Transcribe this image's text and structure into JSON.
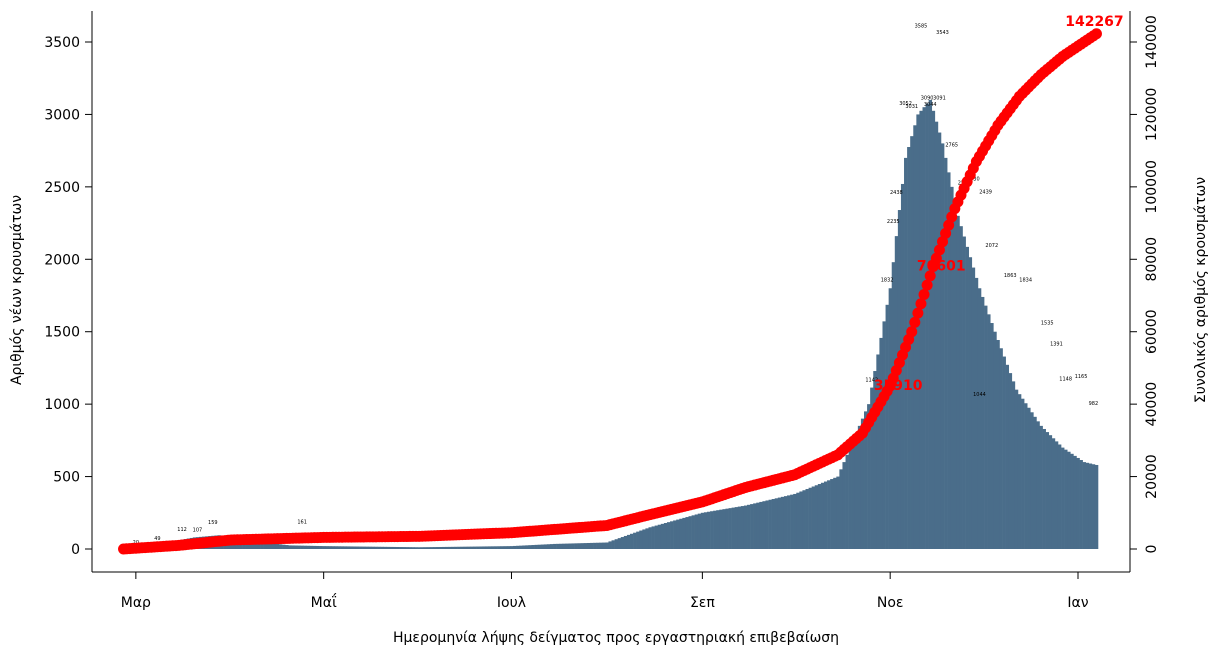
{
  "chart_data": {
    "type": "bar",
    "xlabel": "Ημερομηνία λήψης δείγματος προς εργαστηριακή επιβεβαίωση",
    "ylabel": "Αριθμός νέων κρουσμάτων",
    "y2label": "Συνολικός αριθμός κρουσμάτων",
    "x_tick_labels": [
      "Μαρ",
      "Μαΐ",
      "Ιουλ",
      "Σεπ",
      "Νοε",
      "Ιαν"
    ],
    "x_tick_dates": [
      "2020-03-01",
      "2020-05-01",
      "2020-07-01",
      "2020-09-01",
      "2020-11-01",
      "2021-01-01"
    ],
    "date_range": [
      "2020-02-26",
      "2021-01-07"
    ],
    "ylim": [
      0,
      3500
    ],
    "y_ticks": [
      0,
      500,
      1000,
      1500,
      2000,
      2500,
      3000,
      3500
    ],
    "y2lim": [
      0,
      140000
    ],
    "y2_ticks": [
      0,
      20000,
      40000,
      60000,
      80000,
      100000,
      120000,
      140000
    ],
    "grid": false,
    "colors": {
      "bars": "#4a6d8a",
      "cumulative": "#ff0000"
    },
    "series": [
      {
        "kind": "bar",
        "axis": "left",
        "knots": [
          [
            "2020-02-26",
            2
          ],
          [
            "2020-03-05",
            20
          ],
          [
            "2020-03-12",
            50
          ],
          [
            "2020-03-20",
            80
          ],
          [
            "2020-03-28",
            95
          ],
          [
            "2020-04-05",
            60
          ],
          [
            "2020-04-20",
            25
          ],
          [
            "2020-05-01",
            20
          ],
          [
            "2020-06-01",
            12
          ],
          [
            "2020-07-01",
            20
          ],
          [
            "2020-07-15",
            35
          ],
          [
            "2020-08-01",
            45
          ],
          [
            "2020-08-15",
            150
          ],
          [
            "2020-09-01",
            250
          ],
          [
            "2020-09-15",
            300
          ],
          [
            "2020-10-01",
            380
          ],
          [
            "2020-10-15",
            500
          ],
          [
            "2020-10-25",
            1000
          ],
          [
            "2020-11-01",
            1800
          ],
          [
            "2020-11-06",
            2700
          ],
          [
            "2020-11-10",
            3000
          ],
          [
            "2020-11-14",
            3100
          ],
          [
            "2020-11-18",
            2800
          ],
          [
            "2020-11-23",
            2300
          ],
          [
            "2020-11-30",
            1800
          ],
          [
            "2020-12-05",
            1500
          ],
          [
            "2020-12-12",
            1100
          ],
          [
            "2020-12-20",
            850
          ],
          [
            "2020-12-27",
            700
          ],
          [
            "2021-01-03",
            600
          ],
          [
            "2021-01-07",
            580
          ]
        ],
        "labeled_points": [
          [
            "2020-03-01",
            20
          ],
          [
            "2020-03-08",
            49
          ],
          [
            "2020-03-16",
            112
          ],
          [
            "2020-03-21",
            107
          ],
          [
            "2020-03-26",
            159
          ],
          [
            "2020-04-24",
            161
          ],
          [
            "2020-10-26",
            1142
          ],
          [
            "2020-10-31",
            1832
          ],
          [
            "2020-11-02",
            2235
          ],
          [
            "2020-11-03",
            2438
          ],
          [
            "2020-11-06",
            3052
          ],
          [
            "2020-11-08",
            3031
          ],
          [
            "2020-11-11",
            3585
          ],
          [
            "2020-11-13",
            3090
          ],
          [
            "2020-11-14",
            3044
          ],
          [
            "2020-11-17",
            3091
          ],
          [
            "2020-11-18",
            3543
          ],
          [
            "2020-11-21",
            2765
          ],
          [
            "2020-11-25",
            2503
          ],
          [
            "2020-11-28",
            2530
          ],
          [
            "2020-11-30",
            1044
          ],
          [
            "2020-12-02",
            2439
          ],
          [
            "2020-12-04",
            2072
          ],
          [
            "2020-12-10",
            1863
          ],
          [
            "2020-12-15",
            1834
          ],
          [
            "2020-12-22",
            1535
          ],
          [
            "2020-12-25",
            1391
          ],
          [
            "2020-12-28",
            1148
          ],
          [
            "2021-01-02",
            1165
          ],
          [
            "2021-01-06",
            982
          ]
        ]
      },
      {
        "kind": "line",
        "axis": "right",
        "knots": [
          [
            "2020-02-26",
            0
          ],
          [
            "2020-03-15",
            1000
          ],
          [
            "2020-04-01",
            2500
          ],
          [
            "2020-05-01",
            3200
          ],
          [
            "2020-06-01",
            3500
          ],
          [
            "2020-07-01",
            4500
          ],
          [
            "2020-08-01",
            6500
          ],
          [
            "2020-08-15",
            9500
          ],
          [
            "2020-09-01",
            13000
          ],
          [
            "2020-09-15",
            17000
          ],
          [
            "2020-10-01",
            20500
          ],
          [
            "2020-10-15",
            26000
          ],
          [
            "2020-10-23",
            32000
          ],
          [
            "2020-11-01",
            45000
          ],
          [
            "2020-11-08",
            60000
          ],
          [
            "2020-11-15",
            78000
          ],
          [
            "2020-11-22",
            94000
          ],
          [
            "2020-11-29",
            107000
          ],
          [
            "2020-12-06",
            117000
          ],
          [
            "2020-12-13",
            125000
          ],
          [
            "2020-12-20",
            131000
          ],
          [
            "2020-12-27",
            136000
          ],
          [
            "2021-01-03",
            140000
          ],
          [
            "2021-01-07",
            142267
          ]
        ],
        "value_labels": [
          {
            "date": "2020-11-01",
            "text": "35910"
          },
          {
            "date": "2020-11-15",
            "text": "70601"
          },
          {
            "date": "2021-01-07",
            "text": "142267"
          }
        ]
      }
    ]
  }
}
